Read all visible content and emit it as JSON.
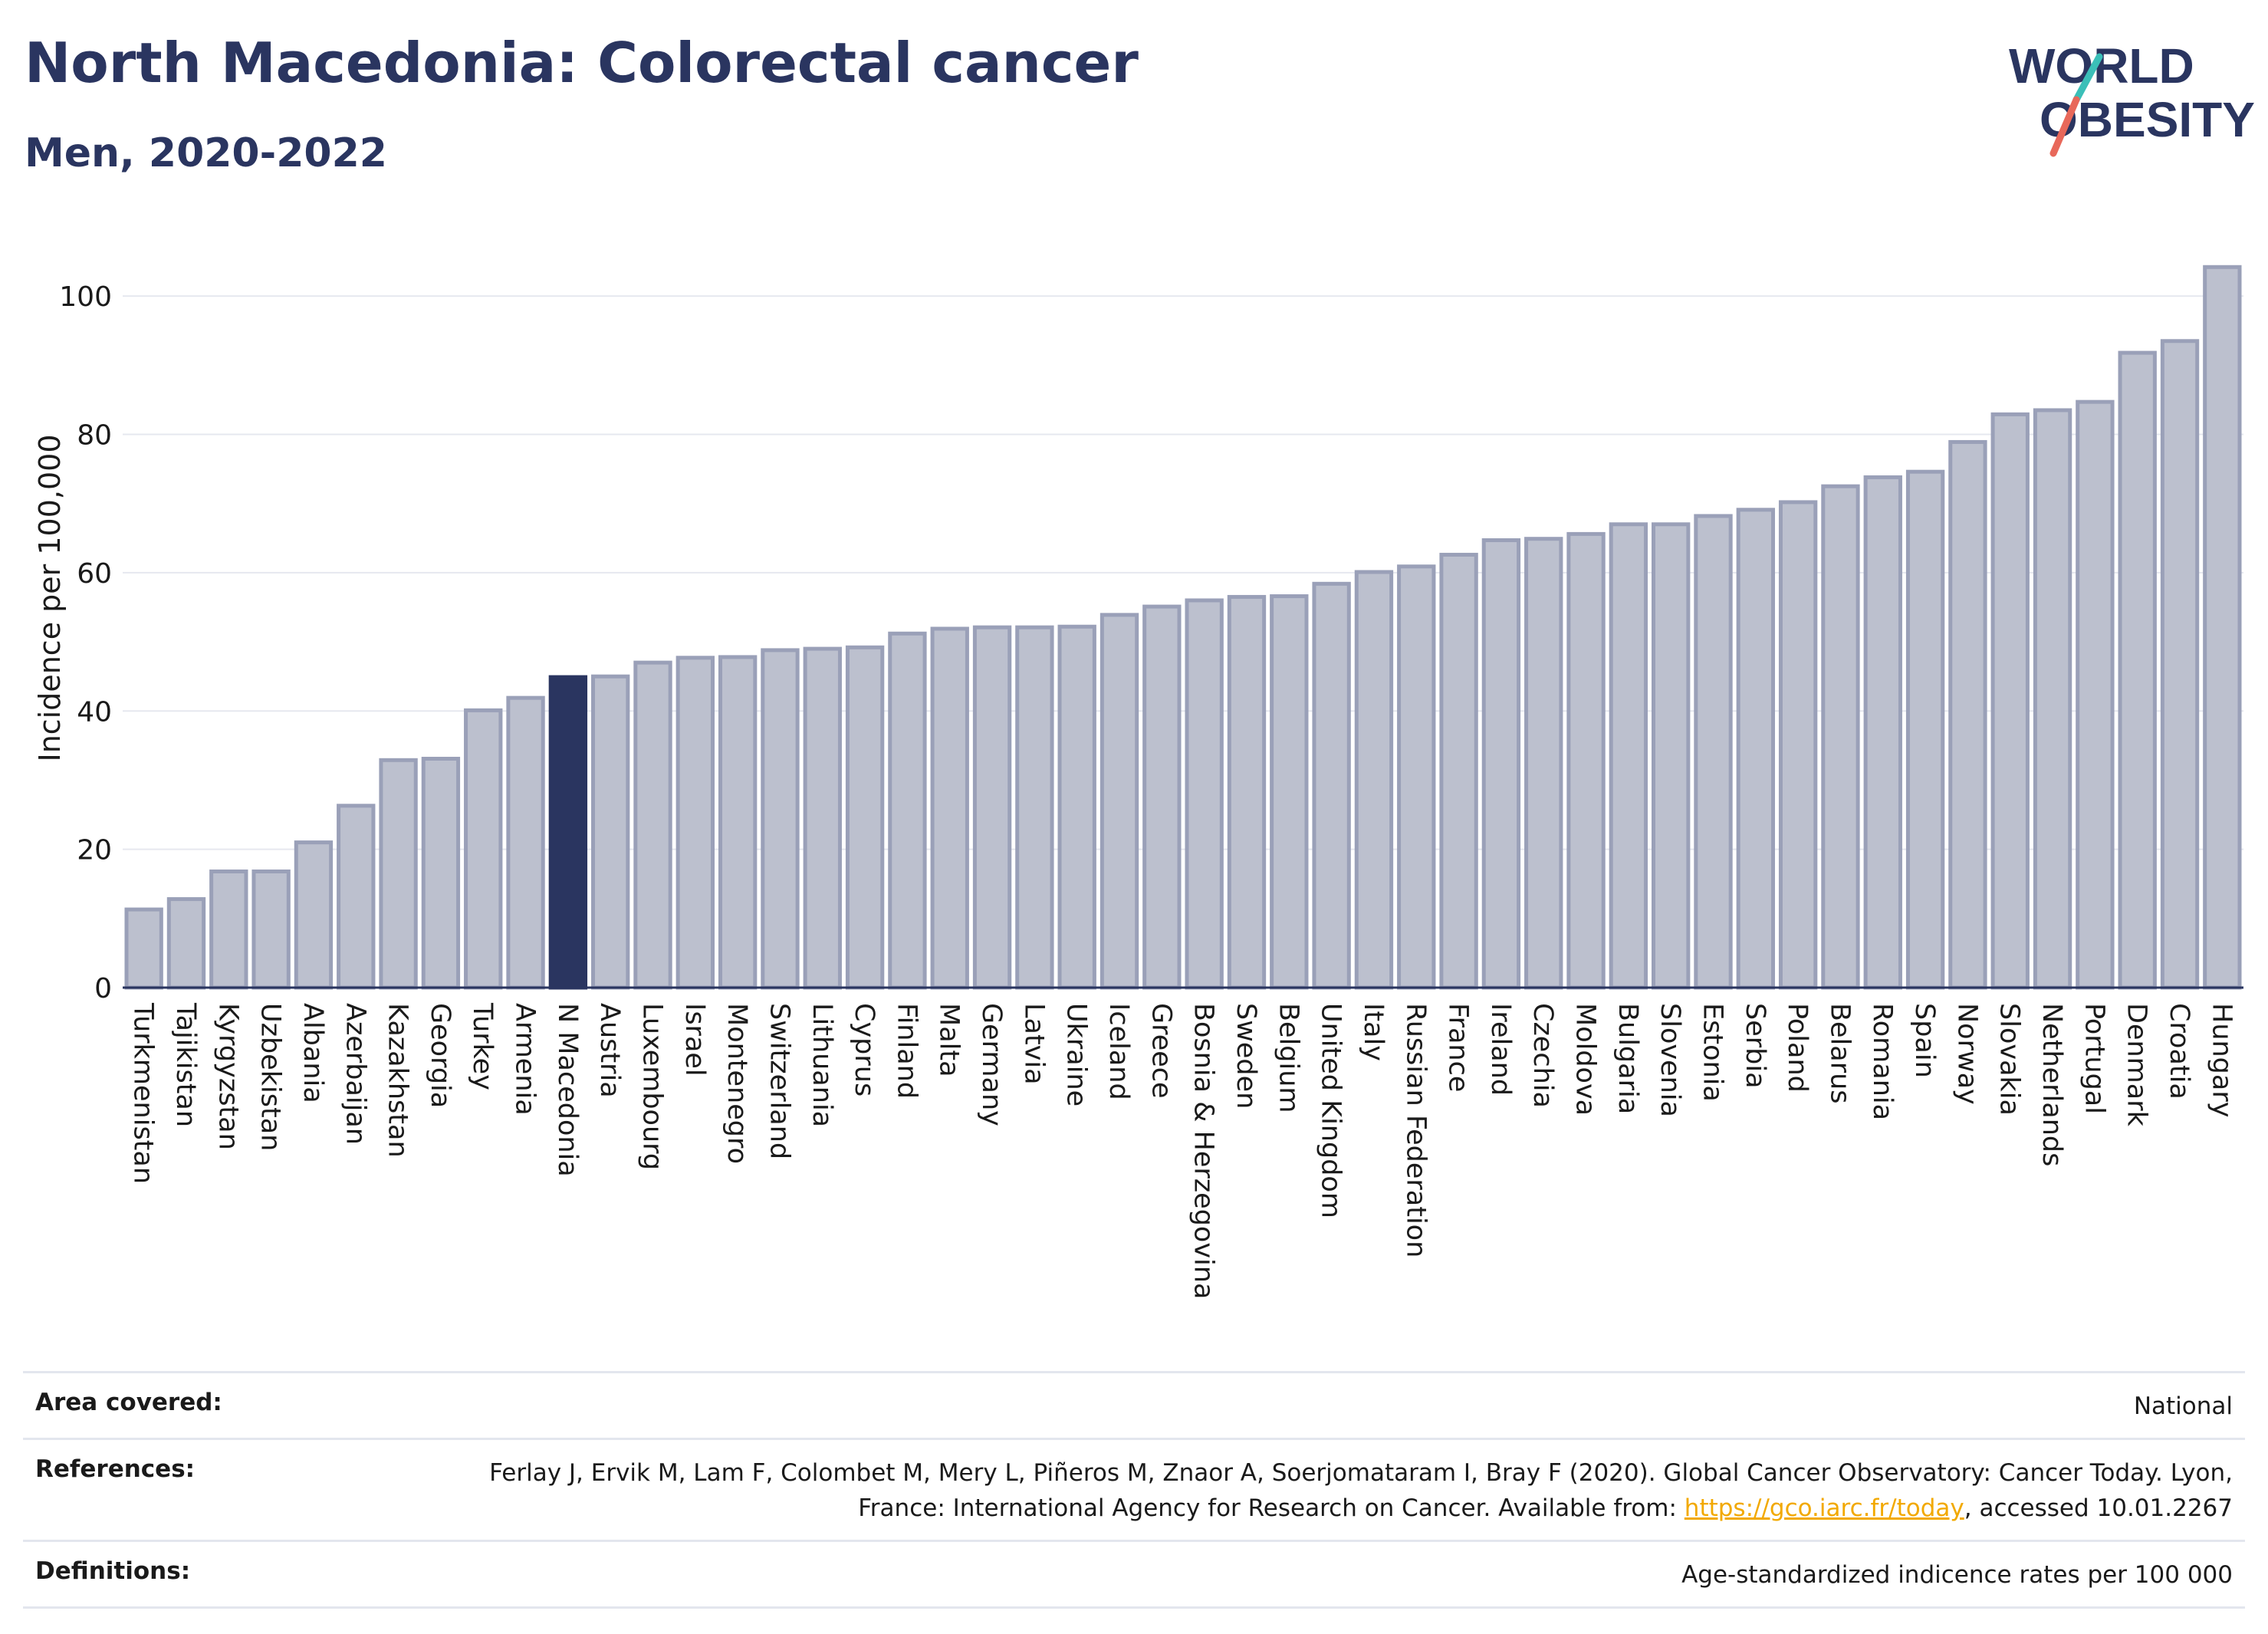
{
  "header": {
    "title": "North Macedonia: Colorectal cancer",
    "subtitle": "Men, 2020-2022"
  },
  "logo": {
    "line1": "WORLD",
    "line2": "OBESITY",
    "accent_teal": "#3bbfb8",
    "accent_coral": "#e8685a",
    "text_color": "#2a3560"
  },
  "chart_data": {
    "type": "bar",
    "ylabel": "Incidence per 100,000",
    "xlabel": "",
    "ylim": [
      0,
      108
    ],
    "yticks": [
      0,
      20,
      40,
      60,
      80,
      100
    ],
    "grid": true,
    "highlight": "N Macedonia",
    "highlight_color": "#2a3560",
    "bar_color": "#bcc0ce",
    "bar_edge_color": "#9aa0b8",
    "categories": [
      "Turkmenistan",
      "Tajikistan",
      "Kyrgyzstan",
      "Uzbekistan",
      "Albania",
      "Azerbaijan",
      "Kazakhstan",
      "Georgia",
      "Turkey",
      "Armenia",
      "N Macedonia",
      "Austria",
      "Luxembourg",
      "Israel",
      "Montenegro",
      "Switzerland",
      "Lithuania",
      "Cyprus",
      "Finland",
      "Malta",
      "Germany",
      "Latvia",
      "Ukraine",
      "Iceland",
      "Greece",
      "Bosnia & Herzegovina",
      "Sweden",
      "Belgium",
      "United Kingdom",
      "Italy",
      "Russian Federation",
      "France",
      "Ireland",
      "Czechia",
      "Moldova",
      "Bulgaria",
      "Slovenia",
      "Estonia",
      "Serbia",
      "Poland",
      "Belarus",
      "Romania",
      "Spain",
      "Norway",
      "Slovakia",
      "Netherlands",
      "Portugal",
      "Denmark",
      "Croatia",
      "Hungary"
    ],
    "values": [
      11.3,
      12.8,
      16.8,
      16.8,
      21.0,
      26.3,
      32.9,
      33.1,
      40.1,
      41.9,
      44.9,
      45.0,
      47.0,
      47.7,
      47.8,
      48.8,
      49.0,
      49.2,
      51.2,
      51.9,
      52.1,
      52.1,
      52.2,
      53.9,
      55.1,
      56.0,
      56.5,
      56.6,
      58.4,
      60.1,
      60.9,
      62.6,
      64.7,
      64.9,
      65.6,
      67.0,
      67.0,
      68.2,
      69.1,
      70.2,
      72.5,
      73.8,
      74.6,
      78.9,
      82.9,
      83.5,
      84.7,
      91.8,
      93.5,
      104.2
    ]
  },
  "footer": {
    "rows": [
      {
        "label": "Area covered:",
        "value": "National"
      },
      {
        "label": "References:",
        "value_pre": "Ferlay J, Ervik M, Lam F, Colombet M, Mery L, Piñeros M, Znaor A, Soerjomataram I, Bray F (2020). Global Cancer Observatory: Cancer Today. Lyon, France: International Agency for Research on Cancer. Available from: ",
        "link": "https://gco.iarc.fr/today",
        "value_post": ", accessed 10.01.2267"
      },
      {
        "label": "Definitions:",
        "value": "Age-standardized indicence rates per 100 000"
      }
    ]
  }
}
